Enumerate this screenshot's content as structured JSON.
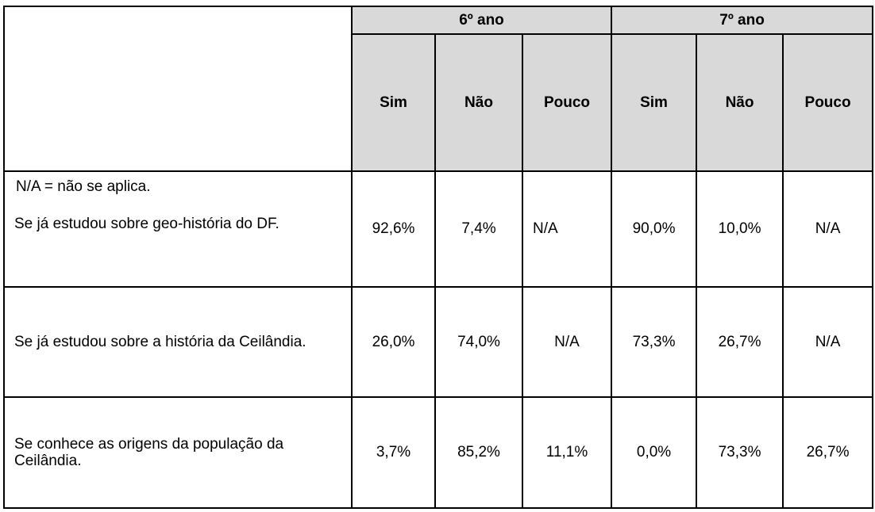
{
  "table": {
    "groups": [
      "6º ano",
      "7º ano"
    ],
    "subheaders": [
      "Sim",
      "Não",
      "Pouco",
      "Sim",
      "Não",
      "Pouco"
    ],
    "note": "N/A = não se aplica.",
    "rows": [
      {
        "question": "Se já estudou sobre geo-história do DF.",
        "values": [
          "92,6%",
          "7,4%",
          "N/A",
          "90,0%",
          "10,0%",
          "N/A"
        ]
      },
      {
        "question": "Se já estudou sobre a história da Ceilândia.",
        "values": [
          "26,0%",
          "74,0%",
          "N/A",
          "73,3%",
          "26,7%",
          "N/A"
        ]
      },
      {
        "question": "Se conhece as origens da população da Ceilândia.",
        "values": [
          "3,7%",
          "85,2%",
          "11,1%",
          "0,0%",
          "73,3%",
          "26,7%"
        ]
      }
    ]
  }
}
